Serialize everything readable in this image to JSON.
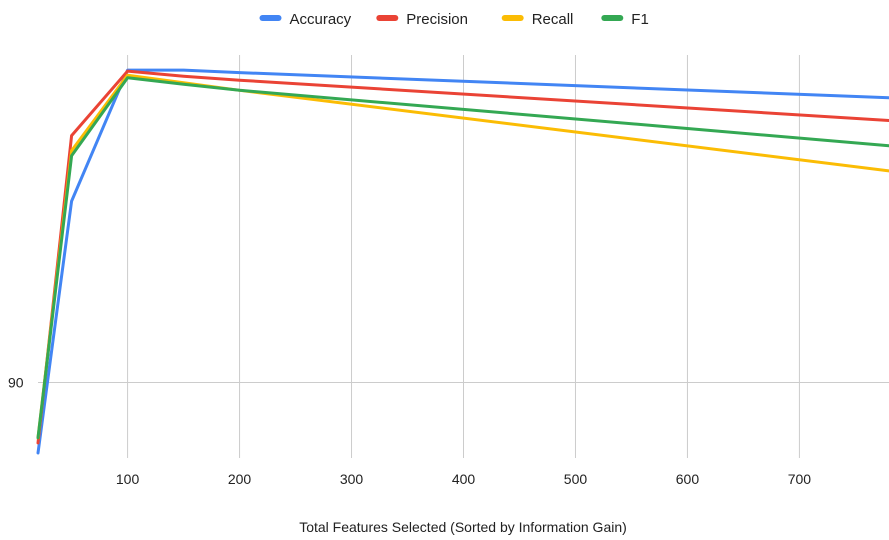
{
  "chart_data": {
    "type": "line",
    "title": "",
    "xlabel": "Total Features Selected (Sorted by Information Gain)",
    "ylabel": "",
    "x": [
      20,
      50,
      100,
      150,
      200,
      780
    ],
    "xlim": [
      20,
      780
    ],
    "ylim": [
      88.5,
      96.5
    ],
    "xticks": [
      "100",
      "200",
      "300",
      "400",
      "500",
      "600",
      "700"
    ],
    "xtick_values": [
      100,
      200,
      300,
      400,
      500,
      600,
      700
    ],
    "yticks": [
      "90"
    ],
    "ytick_values": [
      90
    ],
    "grid": "vertical",
    "legend_position": "top",
    "series": [
      {
        "name": "Accuracy",
        "color": "#4285F4",
        "values": [
          88.6,
          93.6,
          96.2,
          96.2,
          96.15,
          95.65
        ]
      },
      {
        "name": "Precision",
        "color": "#EA4335",
        "values": [
          88.8,
          94.9,
          96.18,
          96.08,
          96.0,
          95.2
        ]
      },
      {
        "name": "Recall",
        "color": "#FBBC04",
        "values": [
          88.9,
          94.6,
          96.1,
          95.95,
          95.8,
          94.2
        ]
      },
      {
        "name": "F1",
        "color": "#34A853",
        "values": [
          88.9,
          94.5,
          96.05,
          95.92,
          95.8,
          94.7
        ]
      }
    ]
  }
}
